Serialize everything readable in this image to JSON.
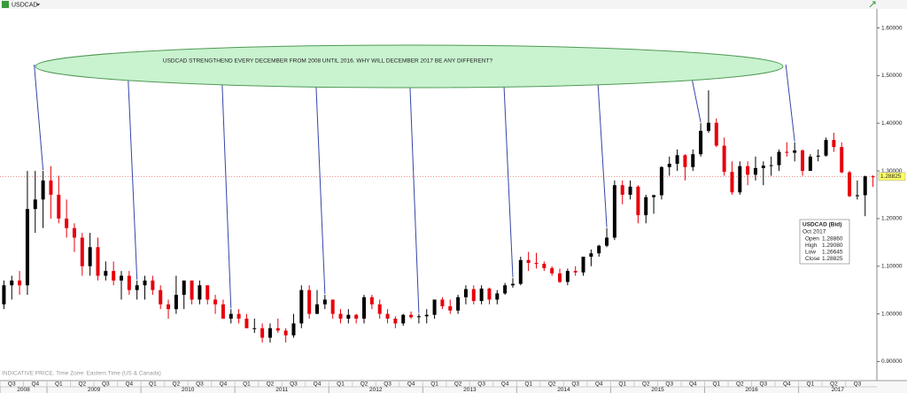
{
  "chart_data": {
    "type": "candlestick",
    "title": "USDCAD",
    "annotation": "USDCAD STRENGTHEND EVERY DECEMBER FROM 2008 UNTIL 2016.  WHY WILL DECEMBER 2017 BE ANY DIFFERENT?",
    "footer": "INDICATIVE PRICE. Time Zone: Eastern Time (US & Canada)",
    "up_color": "#000000",
    "down_color": "#e8000b",
    "ylim": [
      0.86,
      1.64
    ],
    "yticks": [
      {
        "value": 0.9,
        "label": "0.90000"
      },
      {
        "value": 1.0,
        "label": "1.00000"
      },
      {
        "value": 1.1,
        "label": "1.10000"
      },
      {
        "value": 1.2,
        "label": "1.20000"
      },
      {
        "value": 1.3,
        "label": "1.30000"
      },
      {
        "value": 1.4,
        "label": "1.40000"
      },
      {
        "value": 1.5,
        "label": "1.50000"
      },
      {
        "value": 1.6,
        "label": "1.60000"
      }
    ],
    "last_price": 1.28825,
    "last_price_label": "1.28825",
    "quarters": [
      "Q3",
      "Q4",
      "Q1",
      "Q2",
      "Q3",
      "Q4",
      "Q1",
      "Q2",
      "Q3",
      "Q4",
      "Q1",
      "Q2",
      "Q3",
      "Q4",
      "Q1",
      "Q2",
      "Q3",
      "Q4",
      "Q1",
      "Q2",
      "Q3",
      "Q4",
      "Q1",
      "Q2",
      "Q3",
      "Q4",
      "Q1",
      "Q2",
      "Q3",
      "Q4",
      "Q1",
      "Q2",
      "Q3",
      "Q4",
      "Q1",
      "Q2",
      "Q3"
    ],
    "years": [
      "2008",
      "2009",
      "2010",
      "2011",
      "2012",
      "2013",
      "2014",
      "2015",
      "2016",
      "2017"
    ],
    "info_box": {
      "title": "USDCAD (Bid)",
      "date": "Oct 2017",
      "rows": [
        [
          "Open",
          "1.28860"
        ],
        [
          "High",
          "1.29080"
        ],
        [
          "Low",
          "1.26645"
        ],
        [
          "Close",
          "1.28825"
        ]
      ]
    },
    "ohlc": [
      [
        1.02,
        1.07,
        1.01,
        1.06
      ],
      [
        1.06,
        1.08,
        1.03,
        1.07
      ],
      [
        1.07,
        1.09,
        1.04,
        1.06
      ],
      [
        1.06,
        1.3,
        1.04,
        1.22
      ],
      [
        1.22,
        1.3,
        1.17,
        1.24
      ],
      [
        1.24,
        1.3,
        1.18,
        1.28
      ],
      [
        1.28,
        1.31,
        1.2,
        1.25
      ],
      [
        1.25,
        1.29,
        1.19,
        1.2
      ],
      [
        1.2,
        1.24,
        1.16,
        1.18
      ],
      [
        1.18,
        1.19,
        1.13,
        1.16
      ],
      [
        1.16,
        1.17,
        1.08,
        1.1
      ],
      [
        1.1,
        1.17,
        1.08,
        1.14
      ],
      [
        1.14,
        1.16,
        1.07,
        1.08
      ],
      [
        1.08,
        1.11,
        1.07,
        1.09
      ],
      [
        1.09,
        1.11,
        1.06,
        1.07
      ],
      [
        1.07,
        1.09,
        1.03,
        1.08
      ],
      [
        1.08,
        1.09,
        1.04,
        1.05
      ],
      [
        1.05,
        1.07,
        1.03,
        1.06
      ],
      [
        1.06,
        1.08,
        1.03,
        1.07
      ],
      [
        1.07,
        1.08,
        1.04,
        1.05
      ],
      [
        1.05,
        1.06,
        1.01,
        1.02
      ],
      [
        1.02,
        1.03,
        0.99,
        1.01
      ],
      [
        1.01,
        1.08,
        1.0,
        1.04
      ],
      [
        1.04,
        1.07,
        1.01,
        1.07
      ],
      [
        1.07,
        1.07,
        1.02,
        1.03
      ],
      [
        1.03,
        1.07,
        1.02,
        1.06
      ],
      [
        1.06,
        1.06,
        1.02,
        1.03
      ],
      [
        1.03,
        1.04,
        1.0,
        1.02
      ],
      [
        1.02,
        1.03,
        0.99,
        0.99
      ],
      [
        0.99,
        1.01,
        0.98,
        1.0
      ],
      [
        1.0,
        1.01,
        0.98,
        0.99
      ],
      [
        0.99,
        1.0,
        0.97,
        0.97
      ],
      [
        0.97,
        0.99,
        0.96,
        0.97
      ],
      [
        0.97,
        0.98,
        0.94,
        0.95
      ],
      [
        0.95,
        0.98,
        0.94,
        0.97
      ],
      [
        0.97,
        0.99,
        0.96,
        0.965
      ],
      [
        0.965,
        0.97,
        0.94,
        0.955
      ],
      [
        0.955,
        1.0,
        0.95,
        0.98
      ],
      [
        0.98,
        1.06,
        0.97,
        1.05
      ],
      [
        1.05,
        1.06,
        0.99,
        1.0
      ],
      [
        1.0,
        1.05,
        1.0,
        1.02
      ],
      [
        1.02,
        1.04,
        1.01,
        1.03
      ],
      [
        1.03,
        1.03,
        0.99,
        1.0
      ],
      [
        1.0,
        1.01,
        0.98,
        0.99
      ],
      [
        0.99,
        1.01,
        0.98,
        0.998
      ],
      [
        0.998,
        1.0,
        0.98,
        0.99
      ],
      [
        0.99,
        1.04,
        0.98,
        1.035
      ],
      [
        1.035,
        1.04,
        1.01,
        1.02
      ],
      [
        1.02,
        1.03,
        0.99,
        1.0
      ],
      [
        1.0,
        1.01,
        0.98,
        0.99
      ],
      [
        0.99,
        0.995,
        0.97,
        0.98
      ],
      [
        0.98,
        1.0,
        0.975,
        0.998
      ],
      [
        0.998,
        1.005,
        0.99,
        0.993
      ],
      [
        0.993,
        1.0,
        0.98,
        0.995
      ],
      [
        0.995,
        1.01,
        0.98,
        0.998
      ],
      [
        0.998,
        1.03,
        0.99,
        1.03
      ],
      [
        1.03,
        1.035,
        1.01,
        1.016
      ],
      [
        1.016,
        1.03,
        1.0,
        1.007
      ],
      [
        1.007,
        1.04,
        1.0,
        1.035
      ],
      [
        1.035,
        1.06,
        1.02,
        1.052
      ],
      [
        1.052,
        1.06,
        1.02,
        1.027
      ],
      [
        1.027,
        1.06,
        1.02,
        1.053
      ],
      [
        1.053,
        1.055,
        1.02,
        1.03
      ],
      [
        1.03,
        1.05,
        1.02,
        1.043
      ],
      [
        1.043,
        1.065,
        1.04,
        1.06
      ],
      [
        1.06,
        1.075,
        1.055,
        1.063
      ],
      [
        1.063,
        1.12,
        1.06,
        1.113
      ],
      [
        1.113,
        1.13,
        1.09,
        1.107
      ],
      [
        1.107,
        1.128,
        1.095,
        1.105
      ],
      [
        1.105,
        1.11,
        1.09,
        1.096
      ],
      [
        1.096,
        1.1,
        1.08,
        1.085
      ],
      [
        1.085,
        1.095,
        1.065,
        1.067
      ],
      [
        1.067,
        1.095,
        1.06,
        1.09
      ],
      [
        1.09,
        1.1,
        1.08,
        1.087
      ],
      [
        1.087,
        1.12,
        1.08,
        1.12
      ],
      [
        1.12,
        1.135,
        1.1,
        1.127
      ],
      [
        1.127,
        1.145,
        1.12,
        1.143
      ],
      [
        1.143,
        1.18,
        1.14,
        1.16
      ],
      [
        1.16,
        1.28,
        1.155,
        1.27
      ],
      [
        1.27,
        1.28,
        1.23,
        1.25
      ],
      [
        1.25,
        1.28,
        1.24,
        1.267
      ],
      [
        1.267,
        1.27,
        1.19,
        1.207
      ],
      [
        1.207,
        1.25,
        1.19,
        1.245
      ],
      [
        1.245,
        1.25,
        1.21,
        1.249
      ],
      [
        1.249,
        1.31,
        1.24,
        1.308
      ],
      [
        1.308,
        1.33,
        1.29,
        1.315
      ],
      [
        1.315,
        1.345,
        1.3,
        1.333
      ],
      [
        1.333,
        1.335,
        1.28,
        1.308
      ],
      [
        1.308,
        1.345,
        1.3,
        1.335
      ],
      [
        1.335,
        1.4,
        1.33,
        1.384
      ],
      [
        1.384,
        1.469,
        1.38,
        1.401
      ],
      [
        1.401,
        1.41,
        1.35,
        1.353
      ],
      [
        1.353,
        1.37,
        1.29,
        1.298
      ],
      [
        1.298,
        1.32,
        1.25,
        1.255
      ],
      [
        1.255,
        1.32,
        1.25,
        1.31
      ],
      [
        1.31,
        1.32,
        1.27,
        1.292
      ],
      [
        1.292,
        1.33,
        1.28,
        1.306
      ],
      [
        1.306,
        1.32,
        1.27,
        1.311
      ],
      [
        1.311,
        1.33,
        1.29,
        1.312
      ],
      [
        1.312,
        1.345,
        1.3,
        1.34
      ],
      [
        1.34,
        1.36,
        1.33,
        1.338
      ],
      [
        1.338,
        1.36,
        1.32,
        1.343
      ],
      [
        1.343,
        1.345,
        1.29,
        1.3
      ],
      [
        1.3,
        1.335,
        1.3,
        1.33
      ],
      [
        1.33,
        1.345,
        1.32,
        1.332
      ],
      [
        1.332,
        1.37,
        1.33,
        1.365
      ],
      [
        1.365,
        1.38,
        1.34,
        1.35
      ],
      [
        1.35,
        1.36,
        1.295,
        1.297
      ],
      [
        1.297,
        1.3,
        1.245,
        1.247
      ],
      [
        1.247,
        1.28,
        1.24,
        1.249
      ],
      [
        1.249,
        1.29,
        1.205,
        1.2886
      ],
      [
        1.2886,
        1.2908,
        1.26645,
        1.28825
      ]
    ]
  }
}
